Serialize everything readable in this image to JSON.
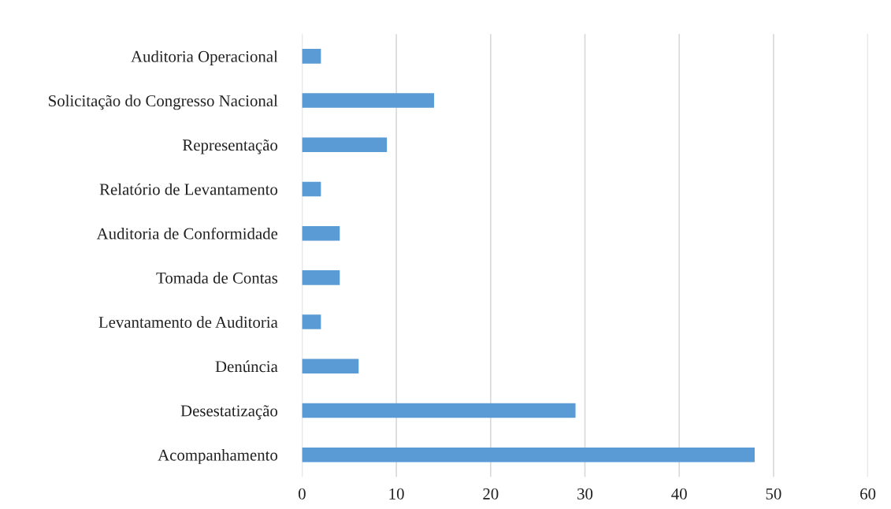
{
  "chart_data": {
    "type": "bar",
    "orientation": "horizontal",
    "categories": [
      "Auditoria Operacional",
      "Solicitação do Congresso Nacional",
      "Representação",
      "Relatório de Levantamento",
      "Auditoria de Conformidade",
      "Tomada de Contas",
      "Levantamento de Auditoria",
      "Denúncia",
      "Desestatização",
      "Acompanhamento"
    ],
    "values": [
      2,
      14,
      9,
      2,
      4,
      4,
      2,
      6,
      29,
      48
    ],
    "color": "#5b9bd5",
    "xlim": [
      0,
      60
    ],
    "xticks": [
      0,
      10,
      20,
      30,
      40,
      50,
      60
    ],
    "grid": "x"
  }
}
